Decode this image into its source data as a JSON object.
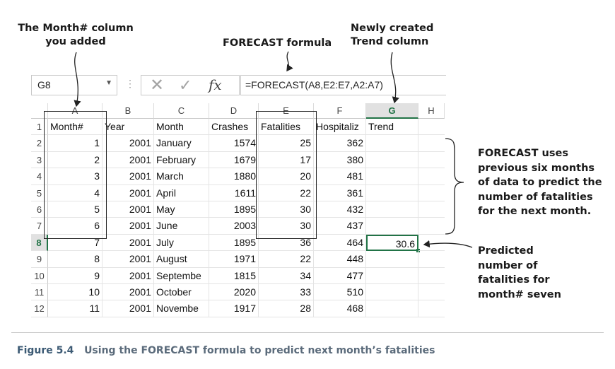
{
  "callouts": {
    "month_column": [
      "The Month# column",
      "you added"
    ],
    "forecast_formula": "FORECAST formula",
    "trend_column": [
      "Newly created",
      "Trend column"
    ],
    "forecast_uses": [
      "FORECAST uses",
      "previous six months",
      "of data to predict the",
      "number of fatalities",
      "for the next month."
    ],
    "predicted": [
      "Predicted",
      "number of",
      "fatalities for",
      "month# seven"
    ]
  },
  "formula_bar": {
    "name_box": "G8",
    "dots": "⋮",
    "cancel_icon": "✕",
    "enter_icon": "✓",
    "fx_label": "fx",
    "formula": "=FORECAST(A8,E2:E7,A2:A7)"
  },
  "sheet": {
    "columns": [
      "A",
      "B",
      "C",
      "D",
      "E",
      "F",
      "G",
      "H"
    ],
    "active_cell": "G8",
    "rows": [
      {
        "num": "1",
        "cells": [
          "Month#",
          "Year",
          "Month",
          "Crashes",
          "Fatalities",
          "Hospitaliz",
          "Trend"
        ]
      },
      {
        "num": "2",
        "cells": [
          "1",
          "2001",
          "January",
          "1574",
          "25",
          "362",
          ""
        ]
      },
      {
        "num": "3",
        "cells": [
          "2",
          "2001",
          "February",
          "1679",
          "17",
          "380",
          ""
        ]
      },
      {
        "num": "4",
        "cells": [
          "3",
          "2001",
          "March",
          "1880",
          "20",
          "481",
          ""
        ]
      },
      {
        "num": "5",
        "cells": [
          "4",
          "2001",
          "April",
          "1611",
          "22",
          "361",
          ""
        ]
      },
      {
        "num": "6",
        "cells": [
          "5",
          "2001",
          "May",
          "1895",
          "30",
          "432",
          ""
        ]
      },
      {
        "num": "7",
        "cells": [
          "6",
          "2001",
          "June",
          "2003",
          "30",
          "437",
          ""
        ]
      },
      {
        "num": "8",
        "cells": [
          "7",
          "2001",
          "July",
          "1895",
          "36",
          "464",
          "30.6"
        ]
      },
      {
        "num": "9",
        "cells": [
          "8",
          "2001",
          "August",
          "1971",
          "22",
          "448",
          ""
        ]
      },
      {
        "num": "10",
        "cells": [
          "9",
          "2001",
          "Septembe",
          "1815",
          "34",
          "477",
          ""
        ]
      },
      {
        "num": "11",
        "cells": [
          "10",
          "2001",
          "October",
          "2020",
          "33",
          "510",
          ""
        ]
      },
      {
        "num": "12",
        "cells": [
          "11",
          "2001",
          "Novembe",
          "1917",
          "28",
          "468",
          ""
        ]
      }
    ]
  },
  "caption": {
    "label": "Figure 5.4",
    "text": "Using the FORECAST formula to predict next month’s fatalities"
  }
}
